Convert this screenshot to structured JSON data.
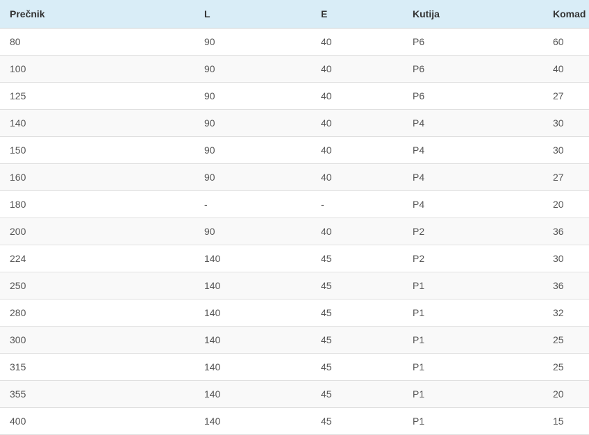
{
  "table": {
    "columns": [
      {
        "label": "Prečnik"
      },
      {
        "label": "L"
      },
      {
        "label": "E"
      },
      {
        "label": "Kutija"
      },
      {
        "label": "Komad"
      }
    ],
    "rows": [
      [
        "80",
        "90",
        "40",
        "P6",
        "60"
      ],
      [
        "100",
        "90",
        "40",
        "P6",
        "40"
      ],
      [
        "125",
        "90",
        "40",
        "P6",
        "27"
      ],
      [
        "140",
        "90",
        "40",
        "P4",
        "30"
      ],
      [
        "150",
        "90",
        "40",
        "P4",
        "30"
      ],
      [
        "160",
        "90",
        "40",
        "P4",
        "27"
      ],
      [
        "180",
        "-",
        "-",
        "P4",
        "20"
      ],
      [
        "200",
        "90",
        "40",
        "P2",
        "36"
      ],
      [
        "224",
        "140",
        "45",
        "P2",
        "30"
      ],
      [
        "250",
        "140",
        "45",
        "P1",
        "36"
      ],
      [
        "280",
        "140",
        "45",
        "P1",
        "32"
      ],
      [
        "300",
        "140",
        "45",
        "P1",
        "25"
      ],
      [
        "315",
        "140",
        "45",
        "P1",
        "25"
      ],
      [
        "355",
        "140",
        "45",
        "P1",
        "20"
      ],
      [
        "400",
        "140",
        "45",
        "P1",
        "15"
      ]
    ]
  },
  "colors": {
    "header_bg": "#d9edf7",
    "header_text": "#333333",
    "body_text": "#555555",
    "stripe_bg": "#f9f9f9",
    "row_border": "#e0e0e0",
    "header_border": "#c9cfd2"
  }
}
